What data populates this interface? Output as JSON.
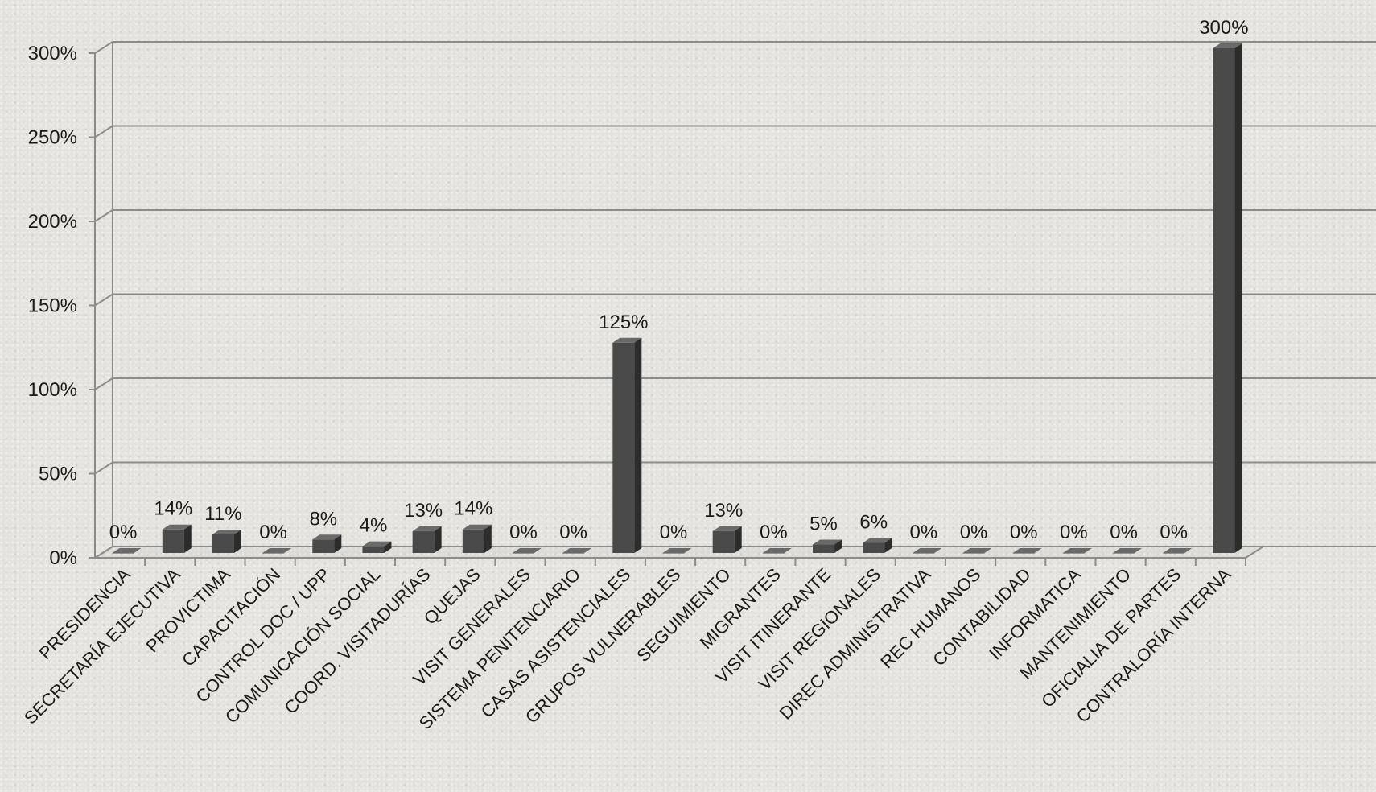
{
  "chart_data": {
    "type": "bar",
    "title": "",
    "xlabel": "",
    "ylabel": "",
    "ylim": [
      0,
      300
    ],
    "yticks": [
      0,
      50,
      100,
      150,
      200,
      250,
      300
    ],
    "ytick_labels": [
      "0%",
      "50%",
      "100%",
      "150%",
      "200%",
      "250%",
      "300%"
    ],
    "grid": true,
    "legend": "none",
    "bar_color": "#4a4a4a",
    "categories": [
      "PRESIDENCIA",
      "SECRETARÍA EJECUTIVA",
      "PROVICTIMA",
      "CAPACITACIÓN",
      "CONTROL DOC / UPP",
      "COMUNICACIÓN SOCIAL",
      "COORD. VISITADURÍAS",
      "QUEJAS",
      "VISIT GENERALES",
      "SISTEMA PENITENCIARIO",
      "CASAS ASISTENCIALES",
      "GRUPOS VULNERABLES",
      "SEGUIMIENTO",
      "MIGRANTES",
      "VISIT ITINERANTE",
      "VISIT REGIONALES",
      "DIREC ADMINISTRATIVA",
      "REC HUMANOS",
      "CONTABILIDAD",
      "INFORMATICA",
      "MANTENIMIENTO",
      "OFICIALIA DE PARTES",
      "CONTRALORÍA INTERNA"
    ],
    "values": [
      0,
      14,
      11,
      0,
      8,
      4,
      13,
      14,
      0,
      0,
      125,
      0,
      13,
      0,
      5,
      6,
      0,
      0,
      0,
      0,
      0,
      0,
      300
    ],
    "data_labels": [
      "0%",
      "14%",
      "11%",
      "0%",
      "8%",
      "4%",
      "13%",
      "14%",
      "0%",
      "0%",
      "125%",
      "0%",
      "13%",
      "0%",
      "5%",
      "6%",
      "0%",
      "0%",
      "0%",
      "0%",
      "0%",
      "0%",
      "300%"
    ]
  }
}
